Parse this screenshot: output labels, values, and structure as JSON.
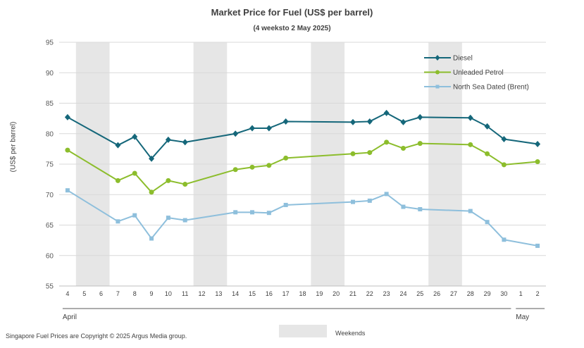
{
  "chart_data": {
    "type": "line",
    "title": "Market Price for Fuel (US$ per barrel)",
    "subtitle": "(4 weeksto 2 May 2025)",
    "ylabel": "(US$ per barrel)",
    "ylim": [
      55,
      95
    ],
    "yticks": [
      55,
      60,
      65,
      70,
      75,
      80,
      85,
      90,
      95
    ],
    "grid": true,
    "legend_position": "top-right",
    "x_labels": [
      "4",
      "5",
      "6",
      "7",
      "8",
      "9",
      "10",
      "11",
      "12",
      "13",
      "14",
      "15",
      "16",
      "17",
      "18",
      "19",
      "20",
      "21",
      "22",
      "23",
      "24",
      "25",
      "26",
      "27",
      "28",
      "29",
      "30",
      "1",
      "2"
    ],
    "months": [
      {
        "label": "April",
        "from": "4",
        "to": "30"
      },
      {
        "label": "May",
        "from": "1",
        "to": "2"
      }
    ],
    "weekends": [
      [
        "5",
        "6"
      ],
      [
        "12",
        "13"
      ],
      [
        "19",
        "20"
      ],
      [
        "26",
        "27"
      ]
    ],
    "weekend_label": "Weekends",
    "series": [
      {
        "name": "Diesel",
        "color": "#15677a",
        "marker": "diamond",
        "points": [
          [
            "4",
            82.7
          ],
          [
            "7",
            78.1
          ],
          [
            "8",
            79.5
          ],
          [
            "9",
            75.9
          ],
          [
            "10",
            79.0
          ],
          [
            "11",
            78.6
          ],
          [
            "14",
            80.0
          ],
          [
            "15",
            80.9
          ],
          [
            "16",
            80.9
          ],
          [
            "17",
            82.0
          ],
          [
            "21",
            81.9
          ],
          [
            "22",
            82.0
          ],
          [
            "23",
            83.4
          ],
          [
            "24",
            81.9
          ],
          [
            "25",
            82.7
          ],
          [
            "28",
            82.6
          ],
          [
            "29",
            81.2
          ],
          [
            "30",
            79.1
          ],
          [
            "2",
            78.3
          ]
        ]
      },
      {
        "name": "Unleaded Petrol",
        "color": "#8cbd2c",
        "marker": "circle",
        "points": [
          [
            "4",
            77.3
          ],
          [
            "7",
            72.3
          ],
          [
            "8",
            73.5
          ],
          [
            "9",
            70.4
          ],
          [
            "10",
            72.3
          ],
          [
            "11",
            71.7
          ],
          [
            "14",
            74.1
          ],
          [
            "15",
            74.5
          ],
          [
            "16",
            74.8
          ],
          [
            "17",
            76.0
          ],
          [
            "21",
            76.7
          ],
          [
            "22",
            76.9
          ],
          [
            "23",
            78.6
          ],
          [
            "24",
            77.6
          ],
          [
            "25",
            78.4
          ],
          [
            "28",
            78.2
          ],
          [
            "29",
            76.7
          ],
          [
            "30",
            74.9
          ],
          [
            "2",
            75.4
          ]
        ]
      },
      {
        "name": "North Sea Dated (Brent)",
        "color": "#8ebfdc",
        "marker": "square",
        "points": [
          [
            "4",
            70.7
          ],
          [
            "7",
            65.6
          ],
          [
            "8",
            66.6
          ],
          [
            "9",
            62.8
          ],
          [
            "10",
            66.2
          ],
          [
            "11",
            65.8
          ],
          [
            "14",
            67.1
          ],
          [
            "15",
            67.1
          ],
          [
            "16",
            67.0
          ],
          [
            "17",
            68.3
          ],
          [
            "21",
            68.8
          ],
          [
            "22",
            69.0
          ],
          [
            "23",
            70.1
          ],
          [
            "24",
            68.0
          ],
          [
            "25",
            67.6
          ],
          [
            "28",
            67.3
          ],
          [
            "29",
            65.5
          ],
          [
            "30",
            62.6
          ],
          [
            "2",
            61.6
          ]
        ]
      }
    ]
  },
  "footer": "Singapore Fuel Prices are Copyright © 2025 Argus Media group."
}
